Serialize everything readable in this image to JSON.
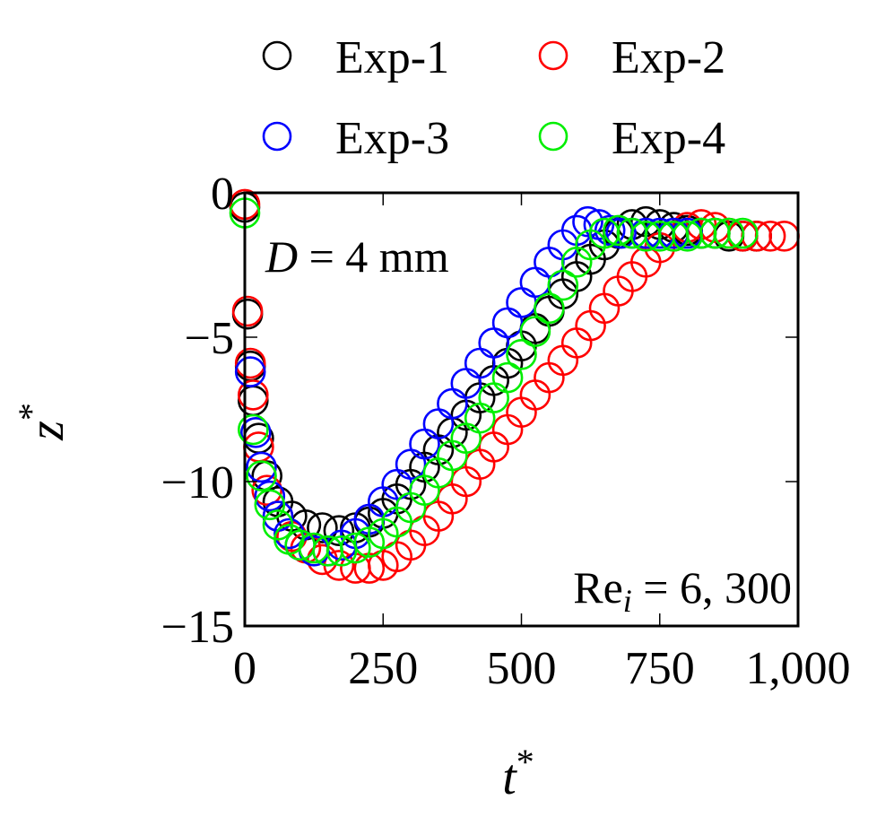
{
  "chart_data": {
    "type": "scatter",
    "xlabel": "t",
    "xlabel_sup": "*",
    "ylabel": "z",
    "ylabel_sup": "*",
    "xlim": [
      0,
      1000
    ],
    "ylim": [
      -15,
      0
    ],
    "xticks": [
      0,
      250,
      500,
      750,
      1000
    ],
    "xtick_labels": [
      "0",
      "250",
      "500",
      "750",
      "1,000"
    ],
    "yticks": [
      0,
      -5,
      -10,
      -15
    ],
    "ytick_labels": [
      "0",
      "−5",
      "−10",
      "−15"
    ],
    "grid": false,
    "legend_position": "top",
    "annotations": [
      {
        "text_var": "D",
        "text_rest": " = 4 mm"
      },
      {
        "text_main": "Re",
        "text_sub": "i",
        "text_rest": " = 6, 300"
      }
    ],
    "series": [
      {
        "name": "Exp-1",
        "color": "#000000",
        "points": [
          [
            0,
            -0.5
          ],
          [
            5,
            -4.2
          ],
          [
            10,
            -6.0
          ],
          [
            15,
            -7.2
          ],
          [
            25,
            -8.5
          ],
          [
            40,
            -9.8
          ],
          [
            60,
            -10.7
          ],
          [
            85,
            -11.2
          ],
          [
            110,
            -11.5
          ],
          [
            140,
            -11.6
          ],
          [
            170,
            -11.7
          ],
          [
            200,
            -11.6
          ],
          [
            225,
            -11.4
          ],
          [
            250,
            -11.1
          ],
          [
            275,
            -10.6
          ],
          [
            300,
            -10.1
          ],
          [
            325,
            -9.5
          ],
          [
            350,
            -8.9
          ],
          [
            375,
            -8.3
          ],
          [
            400,
            -7.7
          ],
          [
            425,
            -7.1
          ],
          [
            450,
            -6.5
          ],
          [
            475,
            -5.9
          ],
          [
            500,
            -5.3
          ],
          [
            525,
            -4.7
          ],
          [
            550,
            -4.1
          ],
          [
            575,
            -3.5
          ],
          [
            600,
            -2.9
          ],
          [
            625,
            -2.3
          ],
          [
            650,
            -1.8
          ],
          [
            675,
            -1.4
          ],
          [
            700,
            -1.1
          ],
          [
            725,
            -1.0
          ],
          [
            750,
            -1.1
          ],
          [
            775,
            -1.2
          ],
          [
            800,
            -1.3
          ],
          [
            825,
            -1.4
          ],
          [
            850,
            -1.4
          ],
          [
            875,
            -1.5
          ],
          [
            900,
            -1.5
          ],
          [
            925,
            -1.5
          ]
        ]
      },
      {
        "name": "Exp-2",
        "color": "#ff0000",
        "points": [
          [
            0,
            -0.4
          ],
          [
            5,
            -4.1
          ],
          [
            10,
            -5.9
          ],
          [
            15,
            -7.0
          ],
          [
            25,
            -8.8
          ],
          [
            40,
            -10.3
          ],
          [
            60,
            -11.2
          ],
          [
            85,
            -11.9
          ],
          [
            110,
            -12.3
          ],
          [
            140,
            -12.7
          ],
          [
            170,
            -12.9
          ],
          [
            200,
            -13.0
          ],
          [
            225,
            -13.0
          ],
          [
            250,
            -12.9
          ],
          [
            275,
            -12.6
          ],
          [
            300,
            -12.2
          ],
          [
            325,
            -11.7
          ],
          [
            350,
            -11.2
          ],
          [
            375,
            -10.6
          ],
          [
            400,
            -10.0
          ],
          [
            425,
            -9.4
          ],
          [
            450,
            -8.8
          ],
          [
            475,
            -8.2
          ],
          [
            500,
            -7.6
          ],
          [
            525,
            -7.0
          ],
          [
            550,
            -6.4
          ],
          [
            575,
            -5.8
          ],
          [
            600,
            -5.2
          ],
          [
            625,
            -4.6
          ],
          [
            650,
            -4.0
          ],
          [
            675,
            -3.4
          ],
          [
            700,
            -2.9
          ],
          [
            725,
            -2.4
          ],
          [
            750,
            -1.9
          ],
          [
            775,
            -1.5
          ],
          [
            800,
            -1.2
          ],
          [
            825,
            -1.1
          ],
          [
            850,
            -1.2
          ],
          [
            875,
            -1.4
          ],
          [
            900,
            -1.5
          ],
          [
            925,
            -1.5
          ],
          [
            950,
            -1.5
          ],
          [
            975,
            -1.5
          ]
        ]
      },
      {
        "name": "Exp-3",
        "color": "#0000ff",
        "points": [
          [
            10,
            -6.2
          ],
          [
            20,
            -8.3
          ],
          [
            30,
            -9.5
          ],
          [
            45,
            -10.5
          ],
          [
            60,
            -11.2
          ],
          [
            80,
            -11.8
          ],
          [
            100,
            -12.2
          ],
          [
            125,
            -12.4
          ],
          [
            150,
            -12.4
          ],
          [
            175,
            -12.2
          ],
          [
            200,
            -11.8
          ],
          [
            225,
            -11.3
          ],
          [
            250,
            -10.7
          ],
          [
            275,
            -10.1
          ],
          [
            300,
            -9.4
          ],
          [
            325,
            -8.7
          ],
          [
            350,
            -8.0
          ],
          [
            375,
            -7.3
          ],
          [
            400,
            -6.6
          ],
          [
            425,
            -5.9
          ],
          [
            450,
            -5.2
          ],
          [
            475,
            -4.5
          ],
          [
            500,
            -3.8
          ],
          [
            525,
            -3.1
          ],
          [
            550,
            -2.4
          ],
          [
            575,
            -1.8
          ],
          [
            600,
            -1.3
          ],
          [
            620,
            -1.0
          ],
          [
            640,
            -1.1
          ],
          [
            660,
            -1.3
          ],
          [
            680,
            -1.4
          ],
          [
            700,
            -1.4
          ],
          [
            725,
            -1.4
          ],
          [
            750,
            -1.4
          ],
          [
            775,
            -1.4
          ],
          [
            800,
            -1.4
          ]
        ]
      },
      {
        "name": "Exp-4",
        "color": "#00ee00",
        "points": [
          [
            0,
            -0.7
          ],
          [
            15,
            -8.2
          ],
          [
            30,
            -9.8
          ],
          [
            45,
            -10.8
          ],
          [
            60,
            -11.5
          ],
          [
            80,
            -12.0
          ],
          [
            100,
            -12.2
          ],
          [
            125,
            -12.3
          ],
          [
            150,
            -12.4
          ],
          [
            175,
            -12.4
          ],
          [
            200,
            -12.3
          ],
          [
            225,
            -12.1
          ],
          [
            250,
            -11.8
          ],
          [
            275,
            -11.4
          ],
          [
            300,
            -10.9
          ],
          [
            325,
            -10.3
          ],
          [
            350,
            -9.7
          ],
          [
            375,
            -9.1
          ],
          [
            400,
            -8.5
          ],
          [
            425,
            -7.8
          ],
          [
            450,
            -7.1
          ],
          [
            475,
            -6.4
          ],
          [
            500,
            -5.6
          ],
          [
            525,
            -4.8
          ],
          [
            550,
            -4.0
          ],
          [
            575,
            -3.2
          ],
          [
            600,
            -2.4
          ],
          [
            625,
            -1.8
          ],
          [
            650,
            -1.4
          ],
          [
            675,
            -1.3
          ],
          [
            700,
            -1.4
          ],
          [
            725,
            -1.5
          ],
          [
            750,
            -1.5
          ],
          [
            775,
            -1.5
          ],
          [
            800,
            -1.5
          ],
          [
            825,
            -1.4
          ],
          [
            850,
            -1.4
          ],
          [
            875,
            -1.4
          ],
          [
            900,
            -1.4
          ]
        ]
      }
    ]
  }
}
